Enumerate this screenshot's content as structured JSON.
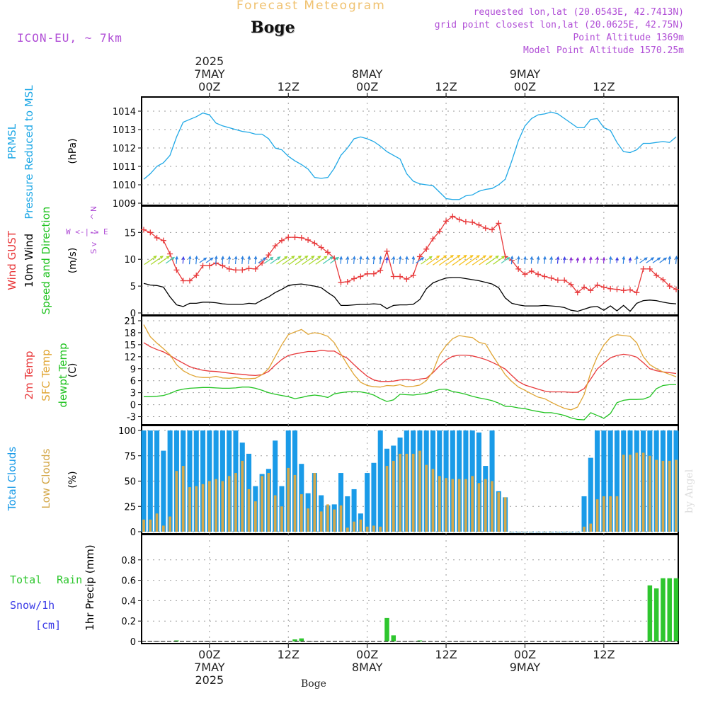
{
  "header": {
    "title": "Forecast Meteogram",
    "location": "Boge",
    "model": "ICON-EU, ~ 7km",
    "requested": "requested lon,lat (20.0543E, 42.7413N)",
    "gridpoint": "grid point closest lon,lat (20.0625E, 42.75N)",
    "point_alt": "Point Altitude 1369m",
    "model_alt": "Model Point Altitude 1570.25m",
    "footer_location": "Boge",
    "watermark": "by Angel"
  },
  "colors": {
    "pressure": "#1fa8e6",
    "gust": "#e8393b",
    "wind10": "#000000",
    "t2m": "#e8393b",
    "sfc": "#e0a534",
    "dewpt": "#22c322",
    "total_cloud": "#1a9be8",
    "low_cloud": "#d4a84a",
    "rain": "#2ec62e",
    "snow": "#3a3ae6",
    "purple": "#b04ed6",
    "title": "#f0c270"
  },
  "chart_data": {
    "time_axis": {
      "start": "2025-05-06T14Z",
      "step": "1h",
      "top_ticks": [
        {
          "lines": [
            "2025",
            "7MAY",
            "00Z"
          ]
        },
        {
          "lines": [
            "12Z"
          ]
        },
        {
          "lines": [
            "8MAY",
            "00Z"
          ]
        },
        {
          "lines": [
            "12Z"
          ]
        },
        {
          "lines": [
            "9MAY",
            "00Z"
          ]
        },
        {
          "lines": [
            "12Z"
          ]
        }
      ],
      "bottom_ticks": [
        {
          "lines": [
            "00Z",
            "7MAY",
            "2025"
          ]
        },
        {
          "lines": [
            "12Z"
          ]
        },
        {
          "lines": [
            "00Z",
            "8MAY"
          ]
        },
        {
          "lines": [
            "12Z"
          ]
        },
        {
          "lines": [
            "00Z",
            "9MAY"
          ]
        },
        {
          "lines": [
            "12Z"
          ]
        }
      ]
    },
    "panels": [
      {
        "id": "pressure",
        "type": "line",
        "ylabels": [
          "PRMSL",
          "Pressure Reduced to MSL"
        ],
        "unit": "(hPa)",
        "ylim": [
          1009,
          1014.5
        ],
        "yticks": [
          1009,
          1010,
          1011,
          1012,
          1013,
          1014
        ],
        "series": [
          {
            "color_key": "pressure",
            "values": [
              1010.3,
              1010.6,
              1011.0,
              1011.2,
              1011.6,
              1012.6,
              1013.4,
              1013.55,
              1013.7,
              1013.9,
              1013.8,
              1013.35,
              1013.2,
              1013.1,
              1013.0,
              1012.9,
              1012.85,
              1012.75,
              1012.75,
              1012.5,
              1012.0,
              1011.9,
              1011.55,
              1011.3,
              1011.1,
              1010.85,
              1010.4,
              1010.35,
              1010.4,
              1010.9,
              1011.6,
              1012.0,
              1012.5,
              1012.6,
              1012.5,
              1012.35,
              1012.1,
              1011.8,
              1011.6,
              1011.4,
              1010.6,
              1010.2,
              1010.05,
              1010.0,
              1009.95,
              1009.6,
              1009.25,
              1009.2,
              1009.2,
              1009.4,
              1009.45,
              1009.65,
              1009.75,
              1009.8,
              1010.0,
              1010.3,
              1011.3,
              1012.4,
              1013.2,
              1013.6,
              1013.8,
              1013.85,
              1013.95,
              1013.85,
              1013.6,
              1013.35,
              1013.1,
              1013.1,
              1013.55,
              1013.6,
              1013.1,
              1012.95,
              1012.3,
              1011.8,
              1011.75,
              1011.9,
              1012.25,
              1012.25,
              1012.3,
              1012.35,
              1012.3,
              1012.6
            ]
          }
        ]
      },
      {
        "id": "wind",
        "type": "line",
        "ylabels": [
          "Wind GUST",
          "10m Wind",
          "Speed and Direction"
        ],
        "unit": "(m/s)",
        "compass": [
          "W",
          "<-|->",
          "E",
          "N",
          "^",
          "|",
          "v",
          "S"
        ],
        "ylim": [
          0,
          19
        ],
        "yticks": [
          0,
          5,
          10,
          15
        ],
        "series": [
          {
            "name": "Wind GUST",
            "color_key": "gust",
            "marker": "plus",
            "values": [
              15.5,
              15.0,
              14.0,
              13.5,
              11.0,
              8.0,
              6.0,
              6.0,
              7.0,
              8.8,
              8.8,
              9.3,
              8.8,
              8.2,
              8.0,
              8.0,
              8.3,
              8.2,
              9.3,
              10.8,
              12.5,
              13.5,
              14.1,
              14.1,
              14.0,
              13.6,
              13.0,
              12.2,
              11.3,
              10.2,
              5.7,
              5.8,
              6.4,
              6.8,
              7.3,
              7.3,
              7.9,
              11.5,
              6.8,
              6.8,
              6.3,
              7.0,
              10.5,
              11.9,
              13.8,
              15.2,
              17.1,
              18.0,
              17.4,
              17.0,
              16.9,
              16.4,
              15.8,
              15.5,
              16.7,
              10.5,
              9.8,
              8.2,
              7.2,
              7.8,
              7.2,
              6.8,
              6.5,
              6.1,
              6.1,
              5.3,
              3.8,
              4.8,
              4.2,
              5.2,
              4.8,
              4.5,
              4.4,
              4.2,
              4.3,
              3.8,
              8.2,
              8.2,
              7.0,
              6.2,
              5.0,
              4.4
            ]
          },
          {
            "name": "10m Wind",
            "color_key": "wind10",
            "values": [
              5.5,
              5.2,
              5.1,
              4.8,
              3.0,
              1.5,
              1.2,
              1.8,
              1.8,
              2.0,
              2.0,
              1.9,
              1.7,
              1.6,
              1.6,
              1.6,
              1.8,
              1.7,
              2.4,
              3.0,
              3.8,
              4.4,
              5.1,
              5.3,
              5.4,
              5.2,
              5.0,
              4.7,
              3.8,
              3.0,
              1.4,
              1.4,
              1.5,
              1.6,
              1.6,
              1.7,
              1.6,
              0.8,
              1.4,
              1.5,
              1.5,
              1.6,
              2.5,
              4.5,
              5.6,
              6.1,
              6.5,
              6.6,
              6.6,
              6.4,
              6.2,
              6.0,
              5.7,
              5.4,
              4.7,
              2.8,
              1.8,
              1.5,
              1.3,
              1.3,
              1.3,
              1.4,
              1.3,
              1.2,
              1.0,
              0.5,
              0.3,
              0.7,
              1.1,
              1.2,
              0.5,
              1.3,
              0.4,
              1.4,
              0.3,
              1.8,
              2.3,
              2.4,
              2.3,
              2.0,
              1.8,
              1.7
            ]
          }
        ]
      },
      {
        "id": "temp",
        "type": "line",
        "ylabels": [
          "2m Temp",
          "SFC Temp",
          "dewpt Temp"
        ],
        "unit": "(C)",
        "ylim": [
          -4.5,
          21
        ],
        "yticks": [
          -3,
          0,
          3,
          6,
          9,
          12,
          15,
          18,
          21
        ],
        "series": [
          {
            "name": "2m Temp",
            "color_key": "t2m",
            "values": [
              15.5,
              14.5,
              13.8,
              13.2,
              12.3,
              11.3,
              10.4,
              9.5,
              9.0,
              8.6,
              8.4,
              8.3,
              8.1,
              7.9,
              7.7,
              7.6,
              7.4,
              7.3,
              7.5,
              8.3,
              9.9,
              11.3,
              12.3,
              12.7,
              13.0,
              13.3,
              13.3,
              13.6,
              13.4,
              13.4,
              12.4,
              11.6,
              10.0,
              8.5,
              7.1,
              6.2,
              5.8,
              5.8,
              5.9,
              6.2,
              6.3,
              6.1,
              6.4,
              6.6,
              8.0,
              9.7,
              11.2,
              12.1,
              12.4,
              12.4,
              12.2,
              11.8,
              11.3,
              10.6,
              9.8,
              8.9,
              7.3,
              5.8,
              4.9,
              4.4,
              3.9,
              3.4,
              3.2,
              3.2,
              3.2,
              3.1,
              3.1,
              4.0,
              6.4,
              8.9,
              10.4,
              11.7,
              12.3,
              12.6,
              12.4,
              11.9,
              10.5,
              9.0,
              8.5,
              8.2,
              8.0,
              7.8
            ]
          },
          {
            "name": "SFC Temp",
            "color_key": "sfc",
            "values": [
              20.0,
              17.0,
              15.4,
              14.0,
              12.5,
              10.0,
              8.5,
              7.6,
              7.0,
              6.8,
              6.8,
              7.1,
              6.7,
              6.6,
              6.8,
              6.5,
              6.5,
              6.6,
              7.5,
              9.0,
              12.0,
              15.0,
              17.5,
              18.2,
              18.8,
              17.6,
              18.0,
              17.7,
              17.1,
              15.5,
              12.7,
              10.0,
              7.5,
              5.6,
              4.8,
              4.5,
              4.4,
              4.8,
              4.7,
              5.0,
              4.5,
              4.6,
              4.9,
              6.0,
              8.3,
              12.5,
              14.8,
              16.5,
              17.3,
              17.0,
              16.8,
              15.6,
              15.2,
              12.5,
              10.0,
              7.5,
              5.8,
              4.4,
              3.6,
              2.7,
              1.9,
              1.5,
              0.6,
              -0.2,
              -0.9,
              -1.3,
              -0.6,
              2.5,
              8.0,
              12.0,
              14.9,
              16.8,
              17.5,
              17.3,
              17.1,
              15.5,
              12.0,
              10.0,
              9.0,
              8.2,
              7.6,
              7.0
            ]
          },
          {
            "name": "dewpt Temp",
            "color_key": "dewpt",
            "values": [
              2.0,
              2.0,
              2.1,
              2.3,
              2.8,
              3.5,
              3.9,
              4.1,
              4.2,
              4.3,
              4.3,
              4.2,
              4.1,
              4.1,
              4.2,
              4.4,
              4.4,
              4.1,
              3.6,
              3.0,
              2.6,
              2.3,
              2.0,
              1.5,
              1.8,
              2.2,
              2.4,
              2.2,
              1.8,
              2.7,
              3.0,
              3.2,
              3.3,
              3.2,
              2.9,
              2.4,
              1.5,
              0.8,
              1.2,
              2.6,
              2.5,
              2.4,
              2.6,
              2.8,
              3.3,
              3.8,
              3.9,
              3.3,
              3.0,
              2.6,
              2.1,
              1.7,
              1.4,
              1.0,
              0.4,
              -0.4,
              -0.5,
              -0.8,
              -1.0,
              -1.4,
              -1.7,
              -2.0,
              -2.0,
              -2.3,
              -2.7,
              -3.3,
              -3.7,
              -3.8,
              -2.0,
              -2.7,
              -3.4,
              -2.2,
              0.5,
              1.1,
              1.3,
              1.3,
              1.4,
              2.0,
              4.0,
              4.8,
              5.0,
              5.0
            ]
          }
        ]
      },
      {
        "id": "clouds",
        "type": "bar",
        "ylabels": [
          "Total Clouds",
          "Low Clouds"
        ],
        "unit": "(%)",
        "ylim": [
          0,
          100
        ],
        "yticks": [
          0,
          25,
          50,
          75,
          100
        ],
        "series": [
          {
            "name": "Total Clouds",
            "color_key": "total_cloud",
            "values": [
              100,
              100,
              100,
              80,
              100,
              100,
              100,
              100,
              100,
              100,
              100,
              100,
              100,
              100,
              100,
              88,
              77,
              45,
              57,
              62,
              90,
              45,
              100,
              100,
              67,
              38,
              58,
              36,
              26,
              27,
              58,
              35,
              42,
              18,
              58,
              68,
              100,
              82,
              85,
              93,
              100,
              100,
              100,
              100,
              100,
              100,
              100,
              100,
              100,
              100,
              100,
              98,
              65,
              100,
              40,
              34,
              0,
              0,
              0,
              0,
              0,
              0,
              0,
              0,
              0,
              0,
              0,
              35,
              73,
              100,
              100,
              100,
              100,
              100,
              100,
              100,
              100,
              100,
              100,
              100,
              100,
              100
            ]
          },
          {
            "name": "Low Clouds",
            "color_key": "low_cloud",
            "values": [
              12,
              12,
              18,
              6,
              15,
              60,
              65,
              44,
              45,
              47,
              50,
              52,
              50,
              55,
              58,
              70,
              42,
              30,
              55,
              58,
              36,
              25,
              63,
              56,
              37,
              23,
              58,
              20,
              27,
              22,
              26,
              4,
              10,
              12,
              5,
              6,
              5,
              65,
              70,
              77,
              77,
              77,
              80,
              66,
              62,
              55,
              53,
              52,
              52,
              52,
              55,
              48,
              52,
              50,
              39,
              34,
              0,
              0,
              0,
              0,
              0,
              0,
              0,
              0,
              0,
              0,
              0,
              5,
              8,
              32,
              35,
              35,
              35,
              76,
              76,
              78,
              78,
              75,
              71,
              70,
              70,
              71
            ]
          }
        ]
      },
      {
        "id": "precip",
        "type": "bar",
        "ylabels": [
          "1hr Precip (mm)"
        ],
        "left_labels": [
          "Total",
          "Rain",
          "Snow/1h",
          "[cm]"
        ],
        "ylim": [
          0,
          1.0
        ],
        "yticks": [
          0,
          0.2,
          0.4,
          0.6,
          0.8
        ],
        "series": [
          {
            "name": "Total",
            "color_key": "rain",
            "values": [
              0,
              0,
              0,
              0,
              0,
              0.01,
              0,
              0,
              0,
              0,
              0,
              0,
              0,
              0,
              0,
              0,
              0,
              0,
              0,
              0,
              0,
              0,
              0,
              0.02,
              0.03,
              0,
              0,
              0,
              0,
              0,
              0,
              0,
              0,
              0,
              0,
              0,
              0,
              0.23,
              0.06,
              0,
              0,
              0,
              0.01,
              0,
              0,
              0,
              0,
              0,
              0,
              0,
              0,
              0,
              0,
              0,
              0,
              0,
              0,
              0,
              0,
              0,
              0,
              0,
              0,
              0,
              0,
              0,
              0,
              0,
              0,
              0,
              0,
              0,
              0,
              0,
              0,
              0,
              0,
              0.55,
              0.52,
              0.62,
              0.62,
              0.62
            ]
          }
        ]
      }
    ]
  }
}
